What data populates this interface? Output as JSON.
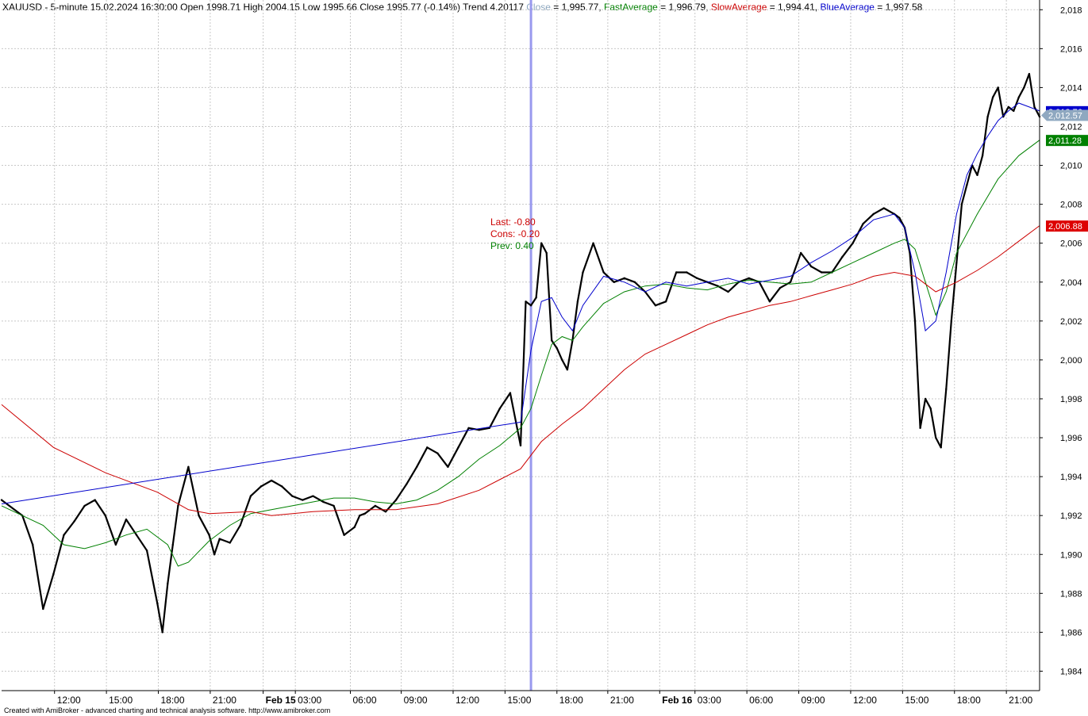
{
  "header": {
    "symbol": "XAUUSD",
    "parts": [
      {
        "text": "XAUUSD - 5-minute 15.02.2024 16:30:00 Open 1998.71 High 2004.15 Low 1995.66 Close 1995.77 (-0.14%) Trend 4.20117 ",
        "color": "#000000"
      },
      {
        "text": "Close",
        "color": "#8fa8c0"
      },
      {
        "text": " = 1,995.77, ",
        "color": "#000000"
      },
      {
        "text": "FastAverage",
        "color": "#008000"
      },
      {
        "text": " = 1,996.79, ",
        "color": "#000000"
      },
      {
        "text": "SlowAverage",
        "color": "#cc0000"
      },
      {
        "text": " = 1,994.41, ",
        "color": "#000000"
      },
      {
        "text": "BlueAverage",
        "color": "#0000cc"
      },
      {
        "text": " = 1,997.58",
        "color": "#000000"
      }
    ]
  },
  "annotation": {
    "last": "Last: -0.80",
    "cons": "Cons: -0.20",
    "prev": "Prev: 0.40",
    "last_color": "#cc0000",
    "cons_color": "#cc0000",
    "prev_color": "#008000"
  },
  "footer": "Created with AmiBroker - advanced charting and technical analysis software. http://www.amibroker.com",
  "price_tags": [
    {
      "label": "2,012.76",
      "value": 2012.76,
      "color": "#0000cc",
      "name": "blue-average-tag"
    },
    {
      "label": "2,012.57",
      "value": 2012.57,
      "color": "#8fa8c0",
      "name": "close-price-tag"
    },
    {
      "label": "2,011.28",
      "value": 2011.28,
      "color": "#008000",
      "name": "fast-average-tag"
    },
    {
      "label": "2,006.88",
      "value": 2006.88,
      "color": "#dd0000",
      "name": "slow-average-tag"
    }
  ],
  "chart_data": {
    "type": "line",
    "title": "XAUUSD - 5-minute",
    "ylim": [
      1983,
      2018.5
    ],
    "y_ticks": [
      "1,984",
      "1,986",
      "1,988",
      "1,990",
      "1,992",
      "1,994",
      "1,996",
      "1,998",
      "2,000",
      "2,002",
      "2,004",
      "2,006",
      "2,008",
      "2,010",
      "2,012",
      "2,014",
      "2,016",
      "2,018"
    ],
    "x_ticks": [
      {
        "label": "12:00",
        "t": 0.051,
        "bold": false
      },
      {
        "label": "15:00",
        "t": 0.101,
        "bold": false
      },
      {
        "label": "18:00",
        "t": 0.151,
        "bold": false
      },
      {
        "label": "21:00",
        "t": 0.201,
        "bold": false
      },
      {
        "label": "Feb 15",
        "t": 0.252,
        "bold": true
      },
      {
        "label": "03:00",
        "t": 0.283,
        "bold": false
      },
      {
        "label": "06:00",
        "t": 0.336,
        "bold": false
      },
      {
        "label": "09:00",
        "t": 0.385,
        "bold": false
      },
      {
        "label": "12:00",
        "t": 0.435,
        "bold": false
      },
      {
        "label": "15:00",
        "t": 0.485,
        "bold": false
      },
      {
        "label": "18:00",
        "t": 0.535,
        "bold": false
      },
      {
        "label": "21:00",
        "t": 0.584,
        "bold": false
      },
      {
        "label": "Feb 16",
        "t": 0.634,
        "bold": true
      },
      {
        "label": "03:00",
        "t": 0.668,
        "bold": false
      },
      {
        "label": "06:00",
        "t": 0.718,
        "bold": false
      },
      {
        "label": "09:00",
        "t": 0.768,
        "bold": false
      },
      {
        "label": "12:00",
        "t": 0.818,
        "bold": false
      },
      {
        "label": "15:00",
        "t": 0.868,
        "bold": false
      },
      {
        "label": "18:00",
        "t": 0.918,
        "bold": false
      },
      {
        "label": "21:00",
        "t": 0.968,
        "bold": false
      }
    ],
    "selected_bar_t": 0.51,
    "grid": true,
    "series": [
      {
        "name": "Close",
        "color": "#000000",
        "x": [
          0,
          0.02,
          0.03,
          0.04,
          0.05,
          0.06,
          0.07,
          0.08,
          0.09,
          0.1,
          0.11,
          0.12,
          0.13,
          0.14,
          0.15,
          0.155,
          0.16,
          0.165,
          0.17,
          0.18,
          0.19,
          0.2,
          0.205,
          0.21,
          0.22,
          0.23,
          0.24,
          0.25,
          0.26,
          0.27,
          0.28,
          0.29,
          0.3,
          0.31,
          0.32,
          0.33,
          0.34,
          0.345,
          0.35,
          0.36,
          0.37,
          0.38,
          0.39,
          0.4,
          0.41,
          0.42,
          0.43,
          0.44,
          0.45,
          0.46,
          0.47,
          0.48,
          0.49,
          0.5,
          0.505,
          0.51,
          0.515,
          0.52,
          0.525,
          0.53,
          0.535,
          0.54,
          0.545,
          0.55,
          0.555,
          0.56,
          0.57,
          0.58,
          0.59,
          0.6,
          0.61,
          0.62,
          0.63,
          0.64,
          0.65,
          0.66,
          0.67,
          0.68,
          0.69,
          0.7,
          0.71,
          0.72,
          0.73,
          0.74,
          0.75,
          0.76,
          0.77,
          0.78,
          0.79,
          0.8,
          0.81,
          0.82,
          0.83,
          0.84,
          0.85,
          0.86,
          0.865,
          0.87,
          0.875,
          0.88,
          0.885,
          0.89,
          0.895,
          0.9,
          0.905,
          0.91,
          0.915,
          0.92,
          0.925,
          0.93,
          0.935,
          0.94,
          0.945,
          0.95,
          0.955,
          0.96,
          0.965,
          0.97,
          0.975,
          0.98,
          0.985,
          0.99,
          0.995,
          1
        ],
        "values": [
          1992.8,
          1992.0,
          1990.5,
          1987.2,
          1989.0,
          1991.0,
          1991.7,
          1992.5,
          1992.8,
          1992.0,
          1990.5,
          1991.8,
          1991.0,
          1990.2,
          1987.5,
          1986.0,
          1988.5,
          1990.5,
          1992.5,
          1994.5,
          1992.0,
          1991.0,
          1990.0,
          1990.8,
          1990.6,
          1991.5,
          1993.0,
          1993.5,
          1993.8,
          1993.5,
          1993.0,
          1992.8,
          1993.0,
          1992.7,
          1992.5,
          1991.0,
          1991.4,
          1992.0,
          1992.1,
          1992.5,
          1992.2,
          1992.8,
          1993.6,
          1994.5,
          1995.5,
          1995.2,
          1994.5,
          1995.5,
          1996.5,
          1996.4,
          1996.5,
          1997.5,
          1998.3,
          1995.6,
          2003.0,
          2002.8,
          2003.2,
          2006.0,
          2005.5,
          2001.0,
          2000.6,
          2000.0,
          1999.5,
          2001.0,
          2003.0,
          2004.5,
          2006.0,
          2004.5,
          2004.0,
          2004.2,
          2004.0,
          2003.5,
          2002.8,
          2003.0,
          2004.5,
          2004.5,
          2004.2,
          2004.0,
          2003.8,
          2003.5,
          2004.0,
          2004.2,
          2004.0,
          2003.0,
          2003.7,
          2004.0,
          2005.5,
          2004.8,
          2004.5,
          2004.5,
          2005.3,
          2006.0,
          2007.0,
          2007.5,
          2007.8,
          2007.5,
          2007.3,
          2006.8,
          2005.5,
          2002.0,
          1996.5,
          1998.0,
          1997.5,
          1996.0,
          1995.5,
          1998.5,
          2002.0,
          2005.0,
          2008.0,
          2009.0,
          2010.0,
          2009.5,
          2010.5,
          2012.5,
          2013.5,
          2014.0,
          2012.5,
          2013.0,
          2012.8,
          2013.5,
          2014.0,
          2014.7,
          2013.0,
          2012.5
        ]
      },
      {
        "name": "FastAverage",
        "color": "#008000",
        "x": [
          0,
          0.04,
          0.06,
          0.08,
          0.1,
          0.12,
          0.14,
          0.16,
          0.17,
          0.18,
          0.2,
          0.22,
          0.24,
          0.26,
          0.28,
          0.3,
          0.32,
          0.34,
          0.36,
          0.38,
          0.4,
          0.42,
          0.44,
          0.46,
          0.48,
          0.5,
          0.51,
          0.52,
          0.53,
          0.54,
          0.55,
          0.56,
          0.58,
          0.6,
          0.62,
          0.64,
          0.66,
          0.68,
          0.7,
          0.72,
          0.74,
          0.76,
          0.78,
          0.8,
          0.82,
          0.84,
          0.86,
          0.87,
          0.88,
          0.89,
          0.9,
          0.91,
          0.92,
          0.94,
          0.96,
          0.98,
          1
        ],
        "values": [
          1992.5,
          1991.5,
          1990.5,
          1990.3,
          1990.6,
          1991.0,
          1991.3,
          1990.5,
          1989.4,
          1989.6,
          1990.7,
          1991.5,
          1992.1,
          1992.3,
          1992.5,
          1992.7,
          1992.9,
          1992.9,
          1992.7,
          1992.6,
          1992.8,
          1993.3,
          1994.0,
          1994.9,
          1995.6,
          1996.5,
          1997.5,
          1999.2,
          2000.8,
          2001.2,
          2001.0,
          2001.7,
          2002.9,
          2003.5,
          2003.8,
          2003.9,
          2003.7,
          2003.6,
          2003.9,
          2004.1,
          2004.0,
          2003.9,
          2004.0,
          2004.5,
          2005.0,
          2005.5,
          2006.0,
          2006.2,
          2005.7,
          2004.0,
          2002.3,
          2003.5,
          2005.5,
          2007.5,
          2009.3,
          2010.5,
          2011.3
        ]
      },
      {
        "name": "SlowAverage",
        "color": "#cc0000",
        "x": [
          0,
          0.05,
          0.1,
          0.15,
          0.18,
          0.2,
          0.24,
          0.26,
          0.3,
          0.34,
          0.38,
          0.42,
          0.46,
          0.5,
          0.52,
          0.54,
          0.56,
          0.58,
          0.6,
          0.62,
          0.64,
          0.66,
          0.68,
          0.7,
          0.72,
          0.74,
          0.76,
          0.78,
          0.8,
          0.82,
          0.84,
          0.86,
          0.88,
          0.89,
          0.9,
          0.92,
          0.94,
          0.96,
          0.98,
          1
        ],
        "values": [
          1997.7,
          1995.5,
          1994.2,
          1993.2,
          1992.3,
          1992.1,
          1992.2,
          1992.0,
          1992.2,
          1992.3,
          1992.3,
          1992.6,
          1993.3,
          1994.4,
          1995.8,
          1996.7,
          1997.5,
          1998.5,
          1999.5,
          2000.3,
          2000.8,
          2001.3,
          2001.8,
          2002.2,
          2002.5,
          2002.8,
          2003.0,
          2003.3,
          2003.6,
          2003.9,
          2004.3,
          2004.5,
          2004.3,
          2003.9,
          2003.5,
          2004.0,
          2004.6,
          2005.3,
          2006.1,
          2006.9
        ]
      },
      {
        "name": "BlueAverage",
        "color": "#0000cc",
        "x": [
          0,
          0.5,
          0.51,
          0.52,
          0.53,
          0.54,
          0.55,
          0.56,
          0.58,
          0.6,
          0.62,
          0.64,
          0.66,
          0.68,
          0.7,
          0.72,
          0.74,
          0.76,
          0.78,
          0.8,
          0.82,
          0.84,
          0.86,
          0.87,
          0.88,
          0.89,
          0.9,
          0.91,
          0.92,
          0.93,
          0.94,
          0.95,
          0.96,
          0.97,
          0.98,
          0.99,
          1
        ],
        "values": [
          1992.6,
          1996.8,
          2000.5,
          2003.0,
          2003.2,
          2002.2,
          2001.5,
          2002.8,
          2004.3,
          2004.0,
          2003.5,
          2004.0,
          2003.8,
          2004.0,
          2004.2,
          2003.9,
          2004.1,
          2004.3,
          2005.0,
          2005.6,
          2006.3,
          2007.2,
          2007.5,
          2006.8,
          2004.5,
          2001.5,
          2002.0,
          2004.5,
          2007.5,
          2009.5,
          2010.6,
          2011.5,
          2012.3,
          2012.8,
          2013.2,
          2013.0,
          2012.8
        ]
      }
    ]
  }
}
